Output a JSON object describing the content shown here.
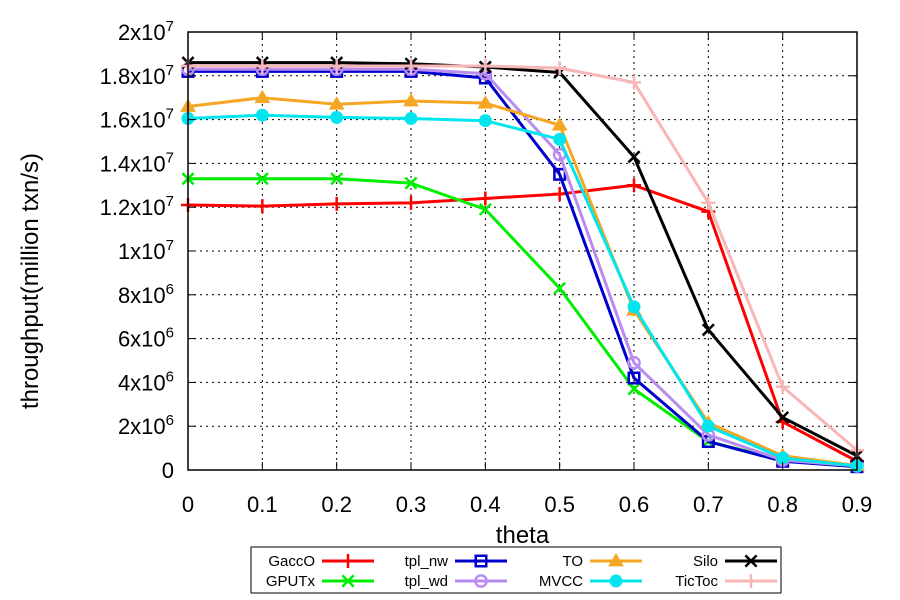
{
  "chart_data": {
    "type": "line",
    "title": "",
    "xlabel": "theta",
    "ylabel": "throughput(million txn/s)",
    "xlim": [
      0,
      0.9
    ],
    "ylim": [
      0,
      20000000
    ],
    "grid": true,
    "legend_position": "bottom",
    "x": [
      0,
      0.1,
      0.2,
      0.3,
      0.4,
      0.5,
      0.6,
      0.7,
      0.8,
      0.9
    ],
    "x_tick_labels": [
      "0",
      "0.1",
      "0.2",
      "0.3",
      "0.4",
      "0.5",
      "0.6",
      "0.7",
      "0.8",
      "0.9"
    ],
    "y_ticks": [
      {
        "value": 0,
        "mant": "0",
        "exp": ""
      },
      {
        "value": 2000000,
        "mant": "2x10",
        "exp": "6"
      },
      {
        "value": 4000000,
        "mant": "4x10",
        "exp": "6"
      },
      {
        "value": 6000000,
        "mant": "6x10",
        "exp": "6"
      },
      {
        "value": 8000000,
        "mant": "8x10",
        "exp": "6"
      },
      {
        "value": 10000000,
        "mant": "1x10",
        "exp": "7"
      },
      {
        "value": 12000000,
        "mant": "1.2x10",
        "exp": "7"
      },
      {
        "value": 14000000,
        "mant": "1.4x10",
        "exp": "7"
      },
      {
        "value": 16000000,
        "mant": "1.6x10",
        "exp": "7"
      },
      {
        "value": 18000000,
        "mant": "1.8x10",
        "exp": "7"
      },
      {
        "value": 20000000,
        "mant": "2x10",
        "exp": "7"
      }
    ],
    "series": [
      {
        "name": "GaccO",
        "color": "#ff0000",
        "marker": "plus",
        "values": [
          12100000,
          12050000,
          12150000,
          12200000,
          12400000,
          12600000,
          13000000,
          11800000,
          2200000,
          400000
        ]
      },
      {
        "name": "GPUTx",
        "color": "#00ee00",
        "marker": "x",
        "values": [
          13300000,
          13300000,
          13300000,
          13100000,
          11900000,
          8300000,
          3700000,
          1300000,
          450000,
          150000
        ]
      },
      {
        "name": "tpl_nw",
        "color": "#0000cc",
        "marker": "square",
        "values": [
          18200000,
          18200000,
          18200000,
          18200000,
          17900000,
          13500000,
          4200000,
          1300000,
          400000,
          150000
        ]
      },
      {
        "name": "tpl_wd",
        "color": "#b98cf2",
        "marker": "circle",
        "values": [
          18300000,
          18300000,
          18300000,
          18300000,
          18100000,
          14400000,
          4900000,
          1600000,
          450000,
          180000
        ]
      },
      {
        "name": "TO",
        "color": "#f5a623",
        "marker": "triangle",
        "values": [
          16600000,
          17000000,
          16700000,
          16850000,
          16750000,
          15750000,
          7300000,
          2150000,
          650000,
          200000
        ]
      },
      {
        "name": "MVCC",
        "color": "#00e5ee",
        "marker": "disc",
        "values": [
          16050000,
          16200000,
          16100000,
          16050000,
          15950000,
          15100000,
          7450000,
          2000000,
          550000,
          180000
        ]
      },
      {
        "name": "Silo",
        "color": "#000000",
        "marker": "x",
        "values": [
          18600000,
          18600000,
          18600000,
          18550000,
          18400000,
          18150000,
          14300000,
          6400000,
          2400000,
          650000
        ]
      },
      {
        "name": "TicToc",
        "color": "#f7b7b7",
        "marker": "plus",
        "values": [
          18450000,
          18450000,
          18450000,
          18450000,
          18450000,
          18350000,
          17700000,
          12200000,
          3800000,
          900000
        ]
      }
    ],
    "legend_layout": [
      {
        "series": 0,
        "col": 0,
        "row": 0
      },
      {
        "series": 1,
        "col": 0,
        "row": 1
      },
      {
        "series": 2,
        "col": 1,
        "row": 0
      },
      {
        "series": 3,
        "col": 1,
        "row": 1
      },
      {
        "series": 4,
        "col": 2,
        "row": 0
      },
      {
        "series": 5,
        "col": 2,
        "row": 1
      },
      {
        "series": 6,
        "col": 3,
        "row": 0
      },
      {
        "series": 7,
        "col": 3,
        "row": 1
      }
    ]
  }
}
